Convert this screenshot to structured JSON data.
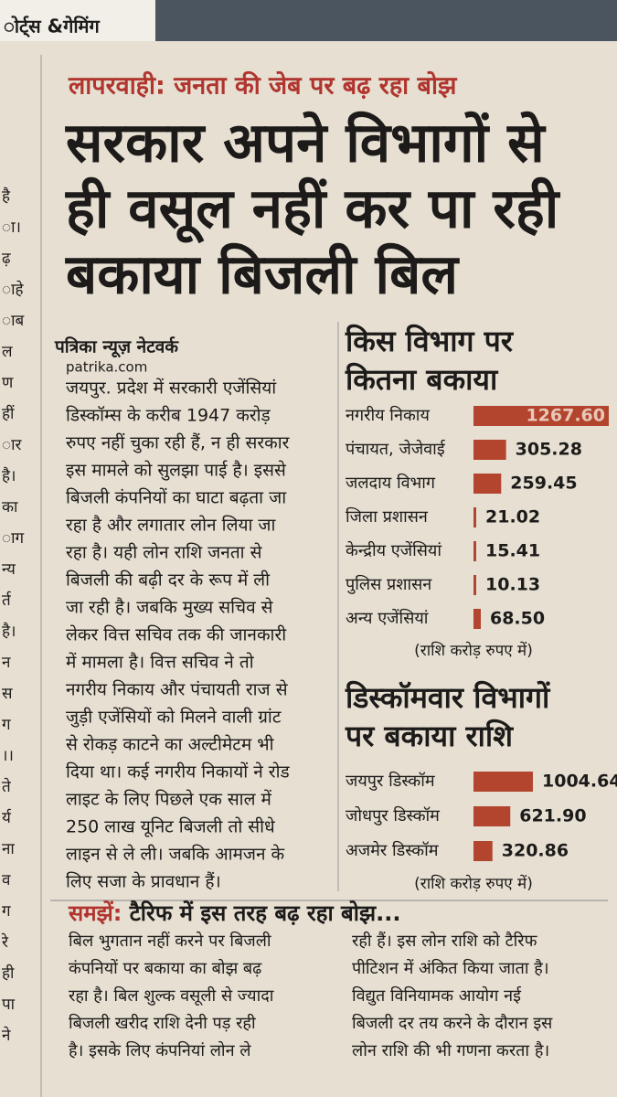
{
  "section_tag": "ोर्ट्स &गेमिंग",
  "margin_fragments": [
    "है",
    "ा।",
    "ढ़",
    "ाहे",
    "ाब",
    "ल",
    "ण",
    "हीं",
    "ार",
    "है।",
    "का",
    "ाग",
    "न्य",
    "र्त",
    "है।",
    "न",
    "स",
    "ग",
    "।।",
    "ते",
    "र्य",
    "ना",
    "व",
    "ग",
    "रे",
    "ही",
    "पा",
    "ने"
  ],
  "kicker": "लापरवाही: जनता की जेब पर बढ़ रहा बोझ",
  "headline": [
    "सरकार अपने विभागों से",
    "ही वसूल नहीं कर पा रही",
    "बकाया बिजली बिल"
  ],
  "byline": "पत्रिका न्यूज़ नेटवर्क",
  "website": "patrika.com",
  "body": [
    "जयपुर. प्रदेश में सरकारी एजेंसियां",
    "डिस्कॉम्स के करीब 1947 करोड़",
    "रुपए नहीं चुका रही हैं, न ही सरकार",
    "इस मामले को सुलझा पाई है। इससे",
    "बिजली कंपनियों का घाटा बढ़ता जा",
    "रहा है और लगातार लोन लिया जा",
    "रहा है। यही लोन राशि जनता से",
    "बिजली की बढ़ी दर के रूप में ली",
    "जा रही है। जबकि मुख्य सचिव से",
    "लेकर वित्त सचिव तक की जानकारी",
    "में मामला है। वित्त सचिव ने तो",
    "नगरीय निकाय और पंचायती राज से",
    "जुड़ी एजेंसियों को मिलने वाली ग्रांट",
    "से रोकड़ काटने का अल्टीमेटम भी",
    "दिया था। कई नगरीय निकायों ने रोड",
    "लाइट के लिए पिछले एक साल में",
    "250 लाख यूनिट बिजली तो सीधे",
    "लाइन से ले ली। जबकि आमजन के",
    "लिए सजा के प्रावधान हैं।"
  ],
  "chart_data": [
    {
      "type": "bar",
      "orientation": "horizontal",
      "title": [
        "किस विभाग पर",
        "कितना बकाया"
      ],
      "categories": [
        "नगरीय निकाय",
        "पंचायत, जेजेवाई",
        "जलदाय विभाग",
        "जिला प्रशासन",
        "केन्द्रीय एजेंसियां",
        "पुलिस प्रशासन",
        "अन्य एजेंसियां"
      ],
      "values": [
        1267.6,
        305.28,
        259.45,
        21.02,
        15.41,
        10.13,
        68.5
      ],
      "value_labels": [
        "1267.60",
        "305.28",
        "259.45",
        "21.02",
        "15.41",
        "10.13",
        "68.50"
      ],
      "color": "#b3452f",
      "note": "(राशि करोड़ रुपए में)"
    },
    {
      "type": "bar",
      "orientation": "horizontal",
      "title": [
        "डिस्कॉमवार विभागों",
        "पर बकाया राशि"
      ],
      "categories": [
        "जयपुर डिस्कॉम",
        "जोधपुर डिस्कॉम",
        "अजमेर डिस्कॉम"
      ],
      "values": [
        1004.64,
        621.9,
        320.86
      ],
      "value_labels": [
        "1004.64",
        "621.90",
        "320.86"
      ],
      "color": "#b3452f",
      "note": "(राशि करोड़ रुपए में)"
    }
  ],
  "explainer": {
    "label": "समझें:",
    "title": "टैरिफ में इस तरह बढ़ रहा बोझ...",
    "columns": [
      [
        "बिल भुगतान नहीं करने पर बिजली",
        "कंपनियों पर बकाया का बोझ बढ़",
        "रहा है। बिल शुल्क वसूली से ज्यादा",
        "बिजली खरीद राशि देनी पड़ रही",
        "है। इसके लिए कंपनियां लोन ले"
      ],
      [
        "रही हैं। इस लोन राशि को टैरिफ",
        "पीटिशन में अंकित किया जाता है।",
        "विद्युत विनियामक आयोग नई",
        "बिजली दर तय करने के दौरान इस",
        "लोन राशि की भी गणना करता है।"
      ]
    ]
  }
}
